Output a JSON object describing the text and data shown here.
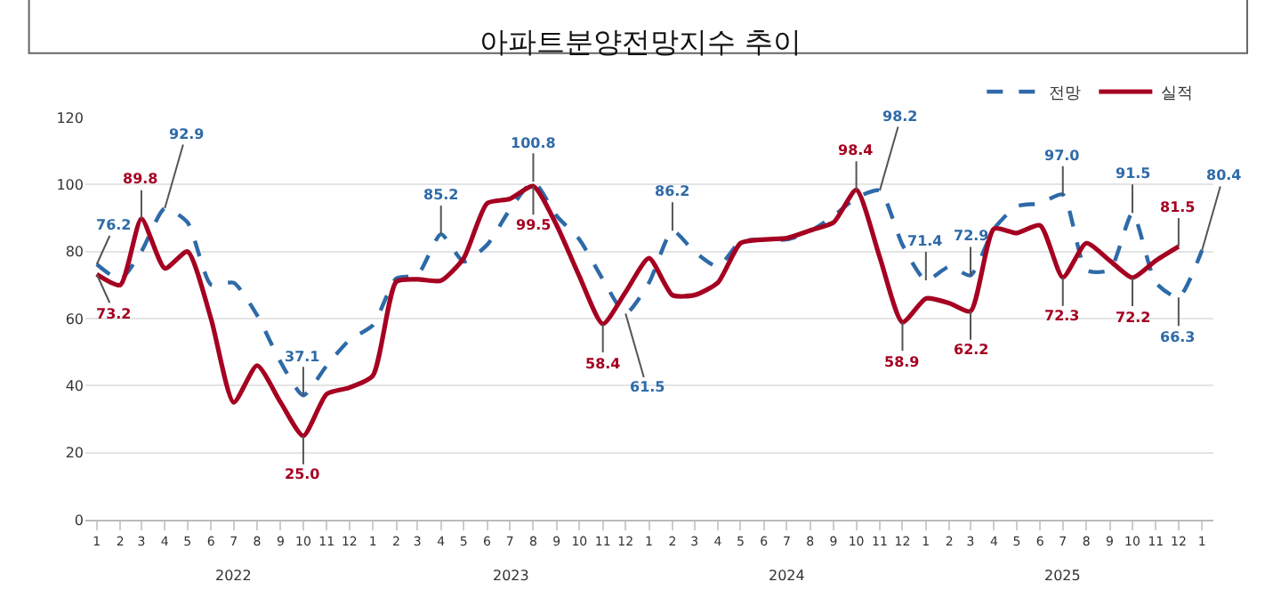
{
  "chart_data": {
    "type": "line",
    "title": "아파트분양전망지수 추이",
    "x": [
      "2022-01",
      "2022-02",
      "2022-03",
      "2022-04",
      "2022-05",
      "2022-06",
      "2022-07",
      "2022-08",
      "2022-09",
      "2022-10",
      "2022-11",
      "2022-12",
      "2023-01",
      "2023-02",
      "2023-03",
      "2023-04",
      "2023-05",
      "2023-06",
      "2023-07",
      "2023-08",
      "2023-09",
      "2023-10",
      "2023-11",
      "2023-12",
      "2024-01",
      "2024-02",
      "2024-03",
      "2024-04",
      "2024-05",
      "2024-06",
      "2024-07",
      "2024-08",
      "2024-09",
      "2024-10",
      "2024-11",
      "2024-12",
      "2025-01",
      "2025-02",
      "2025-03",
      "2025-04",
      "2025-05",
      "2025-06",
      "2025-07",
      "2025-08",
      "2025-09",
      "2025-10",
      "2025-11",
      "2025-12",
      "2026-01"
    ],
    "series": [
      {
        "name": "전망",
        "color": "#2e6aa8",
        "line_style": "dashed",
        "values": [
          76.2,
          71.7,
          80,
          92.9,
          88.7,
          70.1,
          70.7,
          61,
          47,
          37.1,
          46,
          53.6,
          58,
          72,
          73,
          85.2,
          77,
          82,
          92.5,
          100.8,
          90.6,
          83.6,
          71.7,
          61.5,
          70.7,
          86.2,
          80,
          75.5,
          83,
          83.6,
          83.6,
          86,
          90.6,
          96,
          98.2,
          82,
          71.4,
          75.5,
          72.9,
          86.8,
          93.5,
          94.4,
          97.0,
          74.5,
          74.5,
          91.5,
          70.7,
          66.3,
          80.4
        ]
      },
      {
        "name": "실적",
        "color": "#a50021",
        "line_style": "solid",
        "values": [
          73.2,
          70,
          89.8,
          75,
          80,
          60,
          35,
          46,
          35,
          25.0,
          37.5,
          39.4,
          43,
          71,
          71.7,
          71.3,
          78,
          94.4,
          95.7,
          99.5,
          87.8,
          72.6,
          58.4,
          67.9,
          78,
          67,
          67,
          70.7,
          82.5,
          83.6,
          84,
          86.3,
          88.7,
          98.4,
          78.3,
          58.9,
          66,
          64.6,
          62.2,
          86.8,
          85.5,
          87.8,
          72.3,
          82.5,
          77.3,
          72.2,
          77.3,
          81.5,
          null
        ]
      }
    ],
    "xlim": [
      "2021-12-17",
      "2026-01-16"
    ],
    "xticks": [
      {
        "value": "2022-01",
        "label": "1"
      },
      {
        "value": "2022-02",
        "label": "2"
      },
      {
        "value": "2022-03",
        "label": "3"
      },
      {
        "value": "2022-04",
        "label": "4"
      },
      {
        "value": "2022-05",
        "label": "5"
      },
      {
        "value": "2022-06",
        "label": "6"
      },
      {
        "value": "2022-07",
        "label": "7"
      },
      {
        "value": "2022-08",
        "label": "8"
      },
      {
        "value": "2022-09",
        "label": "9"
      },
      {
        "value": "2022-10",
        "label": "10"
      },
      {
        "value": "2022-11",
        "label": "11"
      },
      {
        "value": "2022-12",
        "label": "12"
      },
      {
        "value": "2023-01",
        "label": "1"
      },
      {
        "value": "2023-02",
        "label": "2"
      },
      {
        "value": "2023-03",
        "label": "3"
      },
      {
        "value": "2023-04",
        "label": "4"
      },
      {
        "value": "2023-05",
        "label": "5"
      },
      {
        "value": "2023-06",
        "label": "6"
      },
      {
        "value": "2023-07",
        "label": "7"
      },
      {
        "value": "2023-08",
        "label": "8"
      },
      {
        "value": "2023-09",
        "label": "9"
      },
      {
        "value": "2023-10",
        "label": "10"
      },
      {
        "value": "2023-11",
        "label": "11"
      },
      {
        "value": "2023-12",
        "label": "12"
      },
      {
        "value": "2024-01",
        "label": "1"
      },
      {
        "value": "2024-02",
        "label": "2"
      },
      {
        "value": "2024-03",
        "label": "3"
      },
      {
        "value": "2024-04",
        "label": "4"
      },
      {
        "value": "2024-05",
        "label": "5"
      },
      {
        "value": "2024-06",
        "label": "6"
      },
      {
        "value": "2024-07",
        "label": "7"
      },
      {
        "value": "2024-08",
        "label": "8"
      },
      {
        "value": "2024-09",
        "label": "9"
      },
      {
        "value": "2024-10",
        "label": "10"
      },
      {
        "value": "2024-11",
        "label": "11"
      },
      {
        "value": "2024-12",
        "label": "12"
      },
      {
        "value": "2025-01",
        "label": "1"
      },
      {
        "value": "2025-02",
        "label": "2"
      },
      {
        "value": "2025-03",
        "label": "3"
      },
      {
        "value": "2025-04",
        "label": "4"
      },
      {
        "value": "2025-05",
        "label": "5"
      },
      {
        "value": "2025-06",
        "label": "6"
      },
      {
        "value": "2025-07",
        "label": "7"
      },
      {
        "value": "2025-08",
        "label": "8"
      },
      {
        "value": "2025-09",
        "label": "9"
      },
      {
        "value": "2025-10",
        "label": "10"
      },
      {
        "value": "2025-11",
        "label": "11"
      },
      {
        "value": "2025-12",
        "label": "12"
      },
      {
        "value": "2026-01",
        "label": "1"
      }
    ],
    "ylim": [
      0,
      120
    ],
    "yticks": [
      0,
      20,
      40,
      60,
      80,
      100,
      120
    ],
    "grid": "y",
    "legend": "top right",
    "marker": "none",
    "annotations": [
      {
        "text": "76.2",
        "x": "2022-01",
        "y": 76.2
      },
      {
        "text": "73.2",
        "x": "2022-01",
        "y": 73.2
      },
      {
        "text": "89.8",
        "x": "2022-03",
        "y": 89.8
      },
      {
        "text": "92.9",
        "x": "2022-04",
        "y": 92.9
      },
      {
        "text": "37.1",
        "x": "2022-10",
        "y": 37.1
      },
      {
        "text": "25.0",
        "x": "2022-10",
        "y": 25.0
      },
      {
        "text": "85.2",
        "x": "2023-04",
        "y": 85.2
      },
      {
        "text": "100.8",
        "x": "2023-08",
        "y": 100.8
      },
      {
        "text": "99.5",
        "x": "2023-08",
        "y": 99.5
      },
      {
        "text": "58.4",
        "x": "2023-11",
        "y": 58.4
      },
      {
        "text": "61.5",
        "x": "2023-12",
        "y": 61.5
      },
      {
        "text": "86.2",
        "x": "2024-02",
        "y": 86.2
      },
      {
        "text": "98.4",
        "x": "2024-10",
        "y": 98.4
      },
      {
        "text": "98.2",
        "x": "2024-11",
        "y": 98.2
      },
      {
        "text": "58.9",
        "x": "2024-12",
        "y": 58.9
      },
      {
        "text": "71.4",
        "x": "2025-01",
        "y": 71.4
      },
      {
        "text": "72.9",
        "x": "2025-03",
        "y": 72.9
      },
      {
        "text": "62.2",
        "x": "2025-03",
        "y": 62.2
      },
      {
        "text": "97.0",
        "x": "2025-07",
        "y": 97.0
      },
      {
        "text": "72.3",
        "x": "2025-07",
        "y": 72.3
      },
      {
        "text": "91.5",
        "x": "2025-10",
        "y": 91.5
      },
      {
        "text": "72.2",
        "x": "2025-10",
        "y": 72.2
      },
      {
        "text": "81.5",
        "x": "2025-12",
        "y": 81.5
      },
      {
        "text": "66.3",
        "x": "2025-12",
        "y": 66.3
      },
      {
        "text": "80.4",
        "x": "2026-01",
        "y": 80.4
      },
      "2022",
      "2023",
      "2024",
      "2025"
    ]
  }
}
